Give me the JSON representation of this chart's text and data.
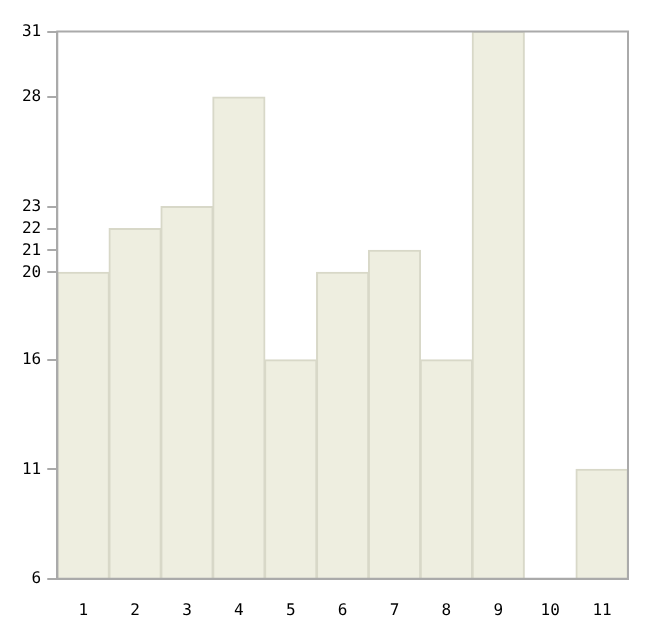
{
  "chart_data": {
    "type": "bar",
    "categories": [
      "1",
      "2",
      "3",
      "4",
      "5",
      "6",
      "7",
      "8",
      "9",
      "10",
      "11"
    ],
    "values": [
      20,
      22,
      23,
      28,
      16,
      20,
      21,
      16,
      31,
      6,
      11
    ],
    "color": "#eeeee0",
    "ylim": [
      6,
      31
    ],
    "yticks": [
      6,
      11,
      16,
      20,
      21,
      22,
      23,
      28,
      31
    ],
    "grid": false,
    "legend": false
  }
}
